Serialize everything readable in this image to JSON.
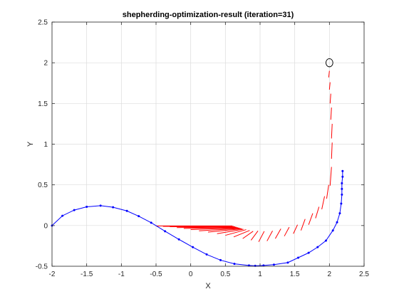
{
  "chart_data": {
    "type": "line",
    "title": "shepherding-optimization-result (iteration=31)",
    "xlabel": "X",
    "ylabel": "Y",
    "xlim": [
      -2,
      2.5
    ],
    "ylim": [
      -0.5,
      2.5
    ],
    "xticks": [
      -2,
      -1.5,
      -1,
      -0.5,
      0,
      0.5,
      1,
      1.5,
      2,
      2.5
    ],
    "xtick_labels": [
      "-2",
      "-1.5",
      "-1",
      "-0.5",
      "0",
      "0.5",
      "1",
      "1.5",
      "2",
      "2.5"
    ],
    "yticks": [
      -0.5,
      0,
      0.5,
      1,
      1.5,
      2,
      2.5
    ],
    "ytick_labels": [
      "-0.5",
      "0",
      "0.5",
      "1",
      "1.5",
      "2",
      "2.5"
    ],
    "grid": true,
    "colors": {
      "path": "#0000ff",
      "segments": "#ff0000",
      "goal": "#000000"
    },
    "series": [
      {
        "type": "line-with-markers",
        "color": "#0000ff",
        "points": [
          [
            -2.0,
            0.0
          ],
          [
            -1.85,
            0.12
          ],
          [
            -1.68,
            0.19
          ],
          [
            -1.5,
            0.23
          ],
          [
            -1.3,
            0.245
          ],
          [
            -1.12,
            0.225
          ],
          [
            -0.92,
            0.18
          ],
          [
            -0.75,
            0.115
          ],
          [
            -0.57,
            0.035
          ],
          [
            -0.37,
            -0.07
          ],
          [
            -0.17,
            -0.17
          ],
          [
            0.03,
            -0.265
          ],
          [
            0.23,
            -0.355
          ],
          [
            0.43,
            -0.425
          ],
          [
            0.63,
            -0.47
          ],
          [
            0.84,
            -0.49
          ],
          [
            0.93,
            -0.495
          ],
          [
            1.05,
            -0.49
          ],
          [
            1.2,
            -0.48
          ],
          [
            1.4,
            -0.455
          ],
          [
            1.55,
            -0.395
          ],
          [
            1.7,
            -0.335
          ],
          [
            1.83,
            -0.265
          ],
          [
            1.95,
            -0.185
          ],
          [
            2.05,
            -0.06
          ],
          [
            2.11,
            0.04
          ],
          [
            2.15,
            0.15
          ],
          [
            2.17,
            0.27
          ],
          [
            2.18,
            0.38
          ],
          [
            2.18,
            0.45
          ],
          [
            2.18,
            0.52
          ],
          [
            2.19,
            0.6
          ],
          [
            2.19,
            0.67
          ]
        ]
      },
      {
        "type": "segments",
        "color": "#ff0000",
        "segments": [
          [
            [
              -0.5,
              -0.005
            ],
            [
              0.6,
              -0.005
            ]
          ],
          [
            [
              -0.4,
              -0.01
            ],
            [
              0.62,
              -0.01
            ]
          ],
          [
            [
              -0.3,
              -0.015
            ],
            [
              0.64,
              -0.015
            ]
          ],
          [
            [
              -0.2,
              -0.025
            ],
            [
              0.66,
              -0.02
            ]
          ],
          [
            [
              -0.1,
              -0.035
            ],
            [
              0.68,
              -0.025
            ]
          ],
          [
            [
              0.0,
              -0.05
            ],
            [
              0.7,
              -0.03
            ]
          ],
          [
            [
              0.12,
              -0.065
            ],
            [
              0.72,
              -0.035
            ]
          ],
          [
            [
              0.25,
              -0.08
            ],
            [
              0.74,
              -0.04
            ]
          ],
          [
            [
              0.38,
              -0.1
            ],
            [
              0.76,
              -0.045
            ]
          ],
          [
            [
              0.5,
              -0.12
            ],
            [
              0.8,
              -0.05
            ]
          ],
          [
            [
              0.62,
              -0.14
            ],
            [
              0.85,
              -0.06
            ]
          ],
          [
            [
              0.75,
              -0.16
            ],
            [
              0.9,
              -0.07
            ]
          ],
          [
            [
              0.87,
              -0.18
            ],
            [
              0.97,
              -0.065
            ]
          ],
          [
            [
              0.98,
              -0.2
            ],
            [
              1.06,
              -0.07
            ]
          ],
          [
            [
              1.1,
              -0.19
            ],
            [
              1.18,
              -0.065
            ]
          ],
          [
            [
              1.22,
              -0.16
            ],
            [
              1.3,
              -0.04
            ]
          ],
          [
            [
              1.35,
              -0.13
            ],
            [
              1.42,
              -0.02
            ]
          ],
          [
            [
              1.48,
              -0.1
            ],
            [
              1.54,
              0.01
            ]
          ],
          [
            [
              1.59,
              -0.06
            ],
            [
              1.65,
              0.08
            ]
          ],
          [
            [
              1.7,
              0.01
            ],
            [
              1.76,
              0.15
            ]
          ],
          [
            [
              1.8,
              0.09
            ],
            [
              1.85,
              0.23
            ]
          ],
          [
            [
              1.89,
              0.2
            ],
            [
              1.93,
              0.36
            ]
          ],
          [
            [
              1.96,
              0.33
            ],
            [
              1.99,
              0.5
            ]
          ],
          [
            [
              2.01,
              0.49
            ],
            [
              2.03,
              0.72
            ]
          ],
          [
            [
              2.03,
              0.82
            ],
            [
              2.04,
              1.02
            ]
          ],
          [
            [
              2.03,
              1.07
            ],
            [
              2.04,
              1.25
            ]
          ],
          [
            [
              2.02,
              1.3
            ],
            [
              2.03,
              1.45
            ]
          ],
          [
            [
              2.01,
              1.5
            ],
            [
              2.02,
              1.62
            ]
          ],
          [
            [
              2.0,
              1.67
            ],
            [
              2.01,
              1.76
            ]
          ],
          [
            [
              1.99,
              1.82
            ],
            [
              2.0,
              1.9
            ]
          ]
        ]
      },
      {
        "type": "goal-circle",
        "color": "#000000",
        "center": [
          2.0,
          2.0
        ],
        "radius": 0.05
      }
    ]
  }
}
